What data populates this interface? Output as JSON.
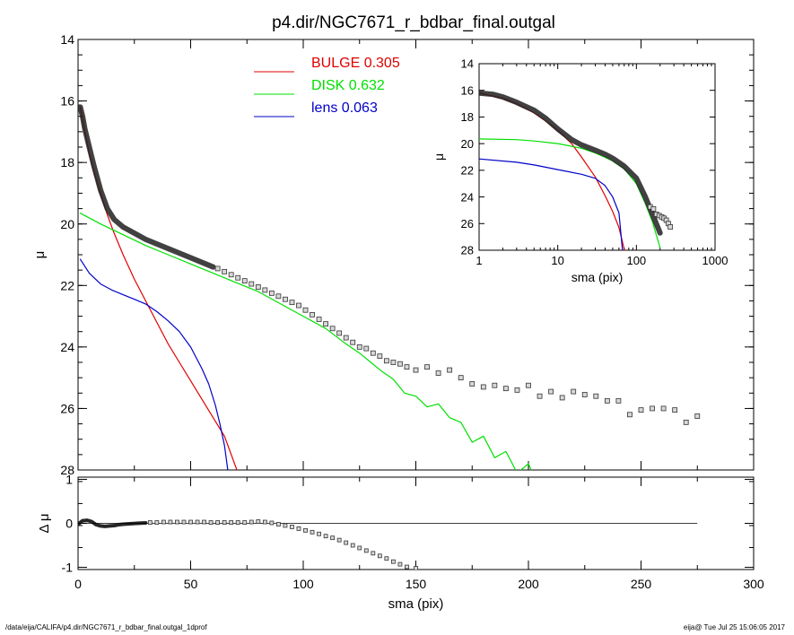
{
  "chart_data": [
    {
      "id": "main",
      "type": "line",
      "title": "p4.dir/NGC7671_r_bdbar_final.outgal",
      "xlabel": "",
      "ylabel": "μ",
      "xlim": [
        0,
        300
      ],
      "ylim": [
        28,
        14
      ],
      "y_inverted": true,
      "xticks": [
        0,
        50,
        100,
        150,
        200,
        250,
        300
      ],
      "yticks": [
        14,
        16,
        18,
        20,
        22,
        24,
        26,
        28
      ],
      "legend": {
        "position": "top-center",
        "entries": [
          {
            "label": "BULGE",
            "value": "0.305",
            "color": "#e00000"
          },
          {
            "label": "DISK",
            "value": "0.632",
            "color": "#00e000"
          },
          {
            "label": "lens",
            "value": "0.063",
            "color": "#0000c8"
          }
        ]
      },
      "series": [
        {
          "name": "BULGE",
          "color": "#e00000",
          "x": [
            1,
            2,
            3,
            5,
            7,
            10,
            13,
            16,
            20,
            25,
            30,
            35,
            40,
            45,
            50,
            55,
            60,
            65,
            70.5
          ],
          "y": [
            16.2,
            16.6,
            17.0,
            17.7,
            18.3,
            19.0,
            19.7,
            20.3,
            21.0,
            21.8,
            22.5,
            23.2,
            23.9,
            24.5,
            25.1,
            25.7,
            26.3,
            26.9,
            28.0
          ]
        },
        {
          "name": "DISK",
          "color": "#00e000",
          "x": [
            1,
            10,
            20,
            30,
            40,
            50,
            60,
            70,
            80,
            90,
            100,
            110,
            118,
            125,
            130,
            135,
            140,
            145,
            150,
            155,
            160,
            165,
            170,
            175,
            180,
            185,
            190,
            195,
            200,
            203,
            205
          ],
          "y": [
            19.65,
            20.0,
            20.35,
            20.7,
            21.0,
            21.3,
            21.6,
            21.9,
            22.2,
            22.6,
            23.0,
            23.4,
            23.85,
            24.2,
            24.5,
            24.8,
            25.05,
            25.5,
            25.6,
            25.95,
            25.85,
            26.3,
            26.45,
            27.1,
            26.9,
            27.6,
            27.4,
            28.1,
            27.8,
            28.3,
            28.1
          ]
        },
        {
          "name": "lens",
          "color": "#0000c8",
          "x": [
            1,
            5,
            10,
            15,
            20,
            25,
            30,
            35,
            40,
            45,
            50,
            55,
            58,
            61,
            63,
            65,
            66.5
          ],
          "y": [
            21.15,
            21.6,
            21.95,
            22.15,
            22.3,
            22.45,
            22.6,
            22.85,
            23.15,
            23.5,
            24.0,
            24.7,
            25.2,
            25.9,
            26.5,
            27.2,
            28.0
          ]
        },
        {
          "name": "",
          "color": "#202020",
          "style": "thick-line",
          "x": [
            0.5,
            1,
            2,
            3,
            5,
            7,
            10,
            13,
            16,
            20,
            25,
            30,
            35,
            40,
            50,
            60
          ],
          "y": [
            16.2,
            16.2,
            16.5,
            16.9,
            17.5,
            18.1,
            18.9,
            19.5,
            19.85,
            20.1,
            20.3,
            20.5,
            20.65,
            20.8,
            21.1,
            21.4
          ]
        }
      ],
      "points": {
        "name": "",
        "x": [
          62,
          65,
          68,
          71,
          74,
          77,
          80,
          83,
          86,
          89,
          92,
          95,
          98,
          101,
          104,
          107,
          110,
          113,
          116,
          119,
          122,
          125,
          128,
          131,
          134,
          137,
          140,
          143,
          146,
          150,
          155,
          160,
          165,
          170,
          175,
          180,
          185,
          190,
          195,
          200,
          205,
          210,
          215,
          220,
          225,
          230,
          235,
          240,
          245,
          250,
          255,
          260,
          265,
          270,
          275
        ],
        "y": [
          21.45,
          21.55,
          21.65,
          21.75,
          21.85,
          21.95,
          22.05,
          22.15,
          22.25,
          22.35,
          22.45,
          22.55,
          22.65,
          22.8,
          22.95,
          23.1,
          23.25,
          23.4,
          23.55,
          23.7,
          23.85,
          24.0,
          24.05,
          24.2,
          24.3,
          24.45,
          24.5,
          24.55,
          24.65,
          24.75,
          24.65,
          24.85,
          24.75,
          25.0,
          25.2,
          25.3,
          25.25,
          25.35,
          25.4,
          25.25,
          25.6,
          25.45,
          25.65,
          25.45,
          25.55,
          25.6,
          25.75,
          25.75,
          26.2,
          26.05,
          26.0,
          26.0,
          26.05,
          26.45,
          26.25
        ]
      }
    },
    {
      "id": "inset",
      "type": "line",
      "title": "",
      "xlabel": "sma (pix)",
      "ylabel": "μ",
      "x_scale": "log",
      "xlim": [
        1,
        1000
      ],
      "ylim": [
        28,
        14
      ],
      "y_inverted": true,
      "xticks": [
        1,
        10,
        100,
        1000
      ],
      "xtick_labels": [
        "1",
        "10",
        "100",
        "1000"
      ],
      "yticks": [
        14,
        16,
        18,
        20,
        22,
        24,
        26,
        28
      ],
      "series": [
        {
          "name": "",
          "color": "#e00000",
          "x": [
            1,
            2,
            3,
            5,
            7,
            10,
            15,
            20,
            30,
            40,
            50,
            60,
            70.5
          ],
          "y": [
            16.2,
            16.6,
            17.0,
            17.7,
            18.3,
            19.0,
            20.0,
            21.0,
            22.5,
            23.9,
            25.1,
            26.3,
            28.0
          ]
        },
        {
          "name": "",
          "color": "#00e000",
          "x": [
            1,
            3,
            5,
            10,
            20,
            30,
            50,
            70,
            100,
            130,
            160,
            180,
            200
          ],
          "y": [
            19.65,
            19.7,
            19.8,
            20.0,
            20.35,
            20.7,
            21.3,
            21.9,
            23.0,
            24.5,
            25.85,
            26.9,
            27.8
          ]
        },
        {
          "name": "",
          "color": "#0000c8",
          "x": [
            1,
            3,
            5,
            10,
            20,
            30,
            40,
            50,
            60,
            66.5
          ],
          "y": [
            21.15,
            21.4,
            21.6,
            21.95,
            22.3,
            22.6,
            23.15,
            24.0,
            25.2,
            28.0
          ]
        },
        {
          "name": "",
          "color": "#202020",
          "style": "thick-line",
          "x": [
            1,
            1.5,
            2,
            3,
            5,
            7,
            10,
            15,
            20,
            30,
            40,
            50,
            70,
            100,
            130,
            160,
            200
          ],
          "y": [
            16.2,
            16.3,
            16.5,
            16.9,
            17.5,
            18.1,
            18.9,
            19.7,
            20.1,
            20.5,
            20.8,
            21.1,
            21.7,
            22.6,
            24.0,
            25.3,
            26.7
          ]
        }
      ],
      "points": {
        "name": "",
        "x": [
          150,
          165,
          180,
          195,
          210,
          225,
          240,
          255,
          270
        ],
        "y": [
          24.75,
          24.9,
          25.3,
          25.4,
          25.5,
          25.6,
          25.75,
          26.0,
          26.25
        ]
      }
    },
    {
      "id": "residual",
      "type": "scatter",
      "title": "",
      "xlabel": "sma (pix)",
      "ylabel": "Δ μ",
      "xlim": [
        0,
        300
      ],
      "ylim": [
        -1.05,
        1.05
      ],
      "xticks": [
        0,
        50,
        100,
        150,
        200,
        250,
        300
      ],
      "yticks": [
        -1,
        0,
        1
      ],
      "zero_line": {
        "from": 0,
        "to": 275
      },
      "series": [
        {
          "name": "",
          "color": "#000000",
          "style": "thick-line",
          "x": [
            0.5,
            2,
            4,
            6,
            8,
            10,
            12,
            14,
            16,
            18,
            20,
            23,
            26,
            30
          ],
          "y": [
            0.0,
            0.06,
            0.07,
            0.04,
            -0.03,
            -0.06,
            -0.07,
            -0.06,
            -0.05,
            -0.03,
            -0.02,
            -0.01,
            0.0,
            0.01
          ]
        }
      ],
      "points": {
        "name": "",
        "x": [
          32,
          35,
          38,
          41,
          44,
          47,
          50,
          53,
          56,
          59,
          62,
          65,
          68,
          71,
          74,
          77,
          80,
          83,
          86,
          89,
          92,
          95,
          98,
          101,
          104,
          107,
          110,
          113,
          116,
          119,
          122,
          125,
          128,
          131,
          134,
          137,
          140,
          143,
          146,
          150
        ],
        "y": [
          0.02,
          0.02,
          0.03,
          0.03,
          0.03,
          0.03,
          0.03,
          0.03,
          0.03,
          0.02,
          0.02,
          0.02,
          0.02,
          0.02,
          0.02,
          0.03,
          0.04,
          0.03,
          0.01,
          -0.02,
          -0.05,
          -0.08,
          -0.12,
          -0.16,
          -0.2,
          -0.24,
          -0.29,
          -0.33,
          -0.38,
          -0.44,
          -0.5,
          -0.56,
          -0.62,
          -0.68,
          -0.74,
          -0.8,
          -0.87,
          -0.93,
          -0.99,
          -1.02
        ]
      }
    }
  ],
  "footer": {
    "left": "/data/eija/CALIFA/p4.dir/NGC7671_r_bdbar_final.outgal_1dprof",
    "right": "eija@  Tue Jul 25 15:06:05 2017"
  }
}
